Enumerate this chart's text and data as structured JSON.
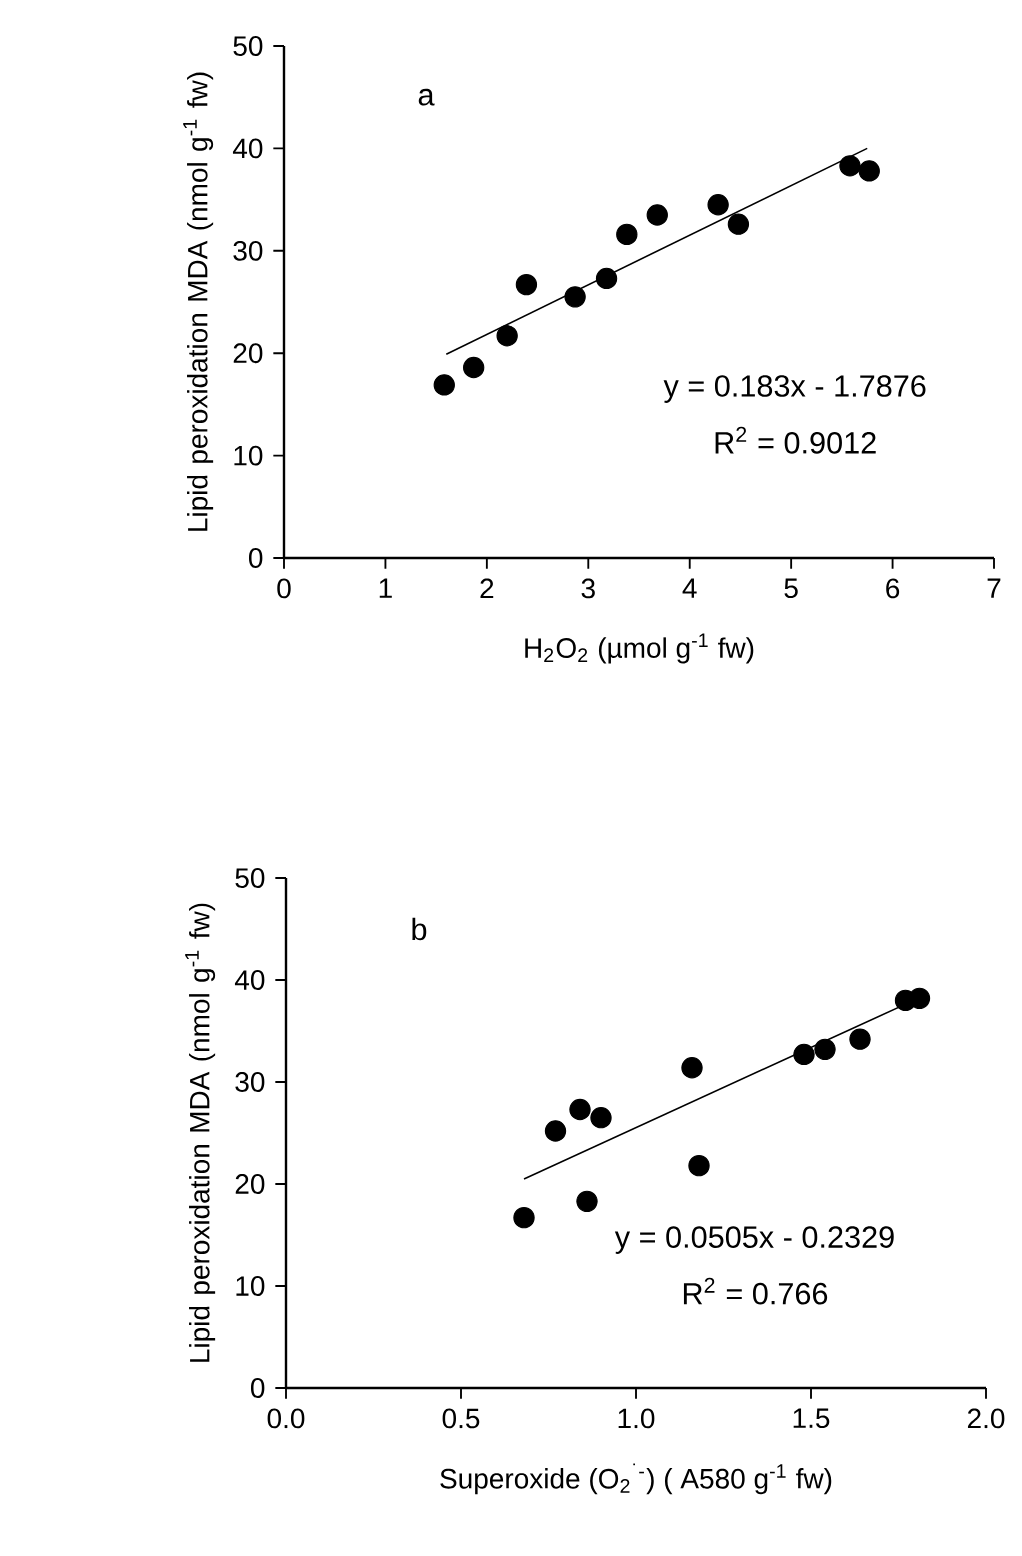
{
  "chart_data": [
    {
      "type": "scatter",
      "xlabel": "H$_{2}$O$_{2}$  (µmol g$^{-1}$ fw)",
      "ylabel": "Lipid peroxidation MDA (nmol g$^{-1}$ fw)",
      "xlim": [
        0,
        7
      ],
      "ylim": [
        0,
        50
      ],
      "xticks": [
        0,
        1,
        2,
        3,
        4,
        5,
        6,
        7
      ],
      "yticks": [
        0,
        10,
        20,
        30,
        40,
        50
      ],
      "annotations": [
        "a",
        "y = 0.183x - 1.7876",
        "R$^{2}$ = 0.9012"
      ],
      "series": [
        {
          "marker": "circle",
          "color": "#000000",
          "x": [
            1.58,
            1.87,
            2.2,
            2.39,
            2.87,
            3.18,
            3.38,
            3.68,
            4.28,
            4.48,
            5.58,
            5.77
          ],
          "values": [
            16.9,
            18.6,
            21.7,
            26.7,
            25.5,
            27.3,
            31.6,
            33.5,
            34.5,
            32.6,
            38.3,
            37.8
          ]
        },
        {
          "type": "line",
          "marker": "none",
          "color": "#000000",
          "x": [
            1.6,
            5.75
          ],
          "values": [
            19.9,
            40.0
          ]
        }
      ]
    },
    {
      "type": "scatter",
      "xlabel": "Superoxide (O$_{2}$$^{˙-}$) ( A580 g$^{-1}$ fw)",
      "ylabel": "Lipid peroxidation MDA (nmol g$^{-1}$ fw)",
      "xlim": [
        0,
        2
      ],
      "ylim": [
        0,
        50
      ],
      "xticks": [
        {
          "value": 0,
          "label": "0.0"
        },
        {
          "value": 0.5,
          "label": "0.5"
        },
        {
          "value": 1,
          "label": "1.0"
        },
        {
          "value": 1.5,
          "label": "1.5"
        },
        {
          "value": 2,
          "label": "2.0"
        }
      ],
      "yticks": [
        0,
        10,
        20,
        30,
        40,
        50
      ],
      "annotations": [
        "b",
        "y = 0.0505x - 0.2329",
        "R$^{2}$ = 0.766"
      ],
      "series": [
        {
          "marker": "circle",
          "color": "#000000",
          "x": [
            0.68,
            0.77,
            0.84,
            0.86,
            0.9,
            1.16,
            1.18,
            1.48,
            1.54,
            1.64,
            1.77,
            1.81
          ],
          "values": [
            16.7,
            25.2,
            27.3,
            18.3,
            26.5,
            31.4,
            21.8,
            32.7,
            33.2,
            34.2,
            38.0,
            38.2
          ]
        },
        {
          "type": "line",
          "marker": "none",
          "color": "#000000",
          "x": [
            0.68,
            1.8
          ],
          "values": [
            20.5,
            38.1
          ]
        }
      ]
    }
  ]
}
